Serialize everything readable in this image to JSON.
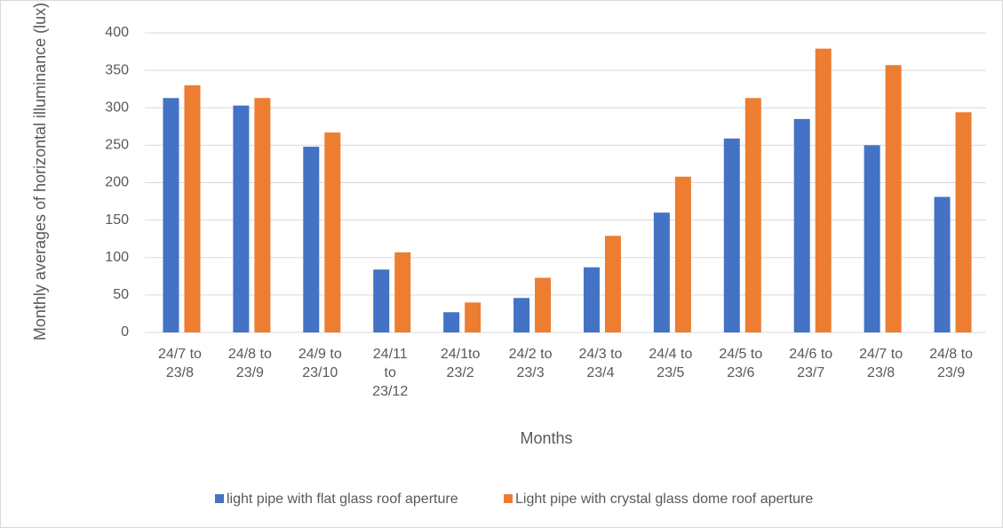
{
  "chart_data": {
    "type": "bar",
    "ylabel": "Monthly averages of horizontal illuminance (lux)",
    "xlabel": "Months",
    "categories": [
      "24/7 to 23/8",
      "24/8 to 23/9",
      "24/9 to 23/10",
      "24/11 to 23/12",
      "24/1to 23/2",
      "24/2 to 23/3",
      "24/3 to 23/4",
      "24/4 to 23/5",
      "24/5 to 23/6",
      "24/6 to 23/7",
      "24/7 to 23/8",
      "24/8 to 23/9"
    ],
    "series": [
      {
        "name": "light pipe with flat glass roof aperture",
        "color": "#4472c4",
        "values": [
          313,
          303,
          248,
          84,
          27,
          46,
          87,
          160,
          259,
          285,
          250,
          181
        ]
      },
      {
        "name": "Light pipe with crystal glass dome roof aperture",
        "color": "#ed7d31",
        "values": [
          330,
          313,
          267,
          107,
          40,
          73,
          129,
          208,
          313,
          379,
          357,
          294
        ]
      }
    ],
    "ylim": [
      0,
      400
    ],
    "yticks": [
      0,
      50,
      100,
      150,
      200,
      250,
      300,
      350,
      400
    ],
    "grid": true,
    "legend": "bottom"
  }
}
